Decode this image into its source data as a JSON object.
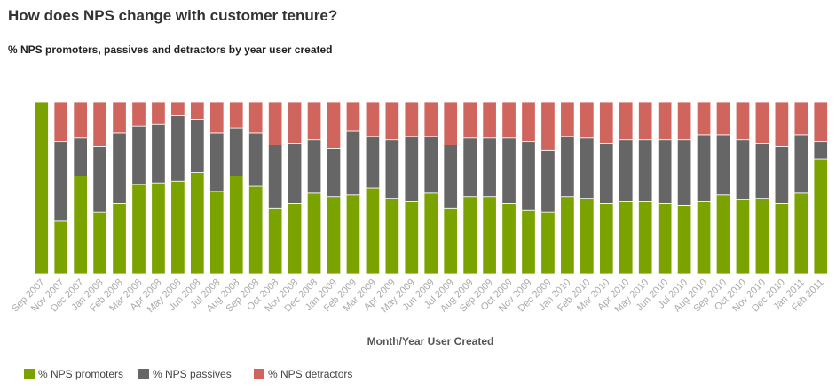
{
  "chart_data": {
    "type": "bar",
    "stacked": true,
    "title": "How does NPS change with customer tenure?",
    "subtitle": "% NPS promoters, passives and detractors by year user created",
    "xlabel": "Month/Year User Created",
    "ylabel": "",
    "ylim": [
      0,
      100
    ],
    "grid": false,
    "legend_position": "bottom-left",
    "categories": [
      "Sep 2007",
      "Nov 2007",
      "Dec 2007",
      "Jan 2008",
      "Feb 2008",
      "Mar 2008",
      "Apr 2008",
      "May 2008",
      "Jun 2008",
      "Jul 2008",
      "Aug 2008",
      "Sep 2008",
      "Oct 2008",
      "Nov 2008",
      "Dec 2008",
      "Jan 2009",
      "Feb 2009",
      "Mar 2009",
      "Apr 2009",
      "May 2009",
      "Jun 2009",
      "Jul 2009",
      "Aug 2009",
      "Sep 2009",
      "Oct 2009",
      "Nov 2009",
      "Dec 2009",
      "Jan 2010",
      "Feb 2010",
      "Mar 2010",
      "Apr 2010",
      "May 2010",
      "Jun 2010",
      "Jul 2010",
      "Aug 2010",
      "Sep 2010",
      "Oct 2010",
      "Nov 2010",
      "Dec 2010",
      "Jan 2011",
      "Feb 2011"
    ],
    "series": [
      {
        "name": "% NPS promoters",
        "color": "#7ba300",
        "values": [
          100,
          31,
          57,
          36,
          41,
          52,
          53,
          54,
          59,
          48,
          57,
          51,
          38,
          41,
          47,
          45,
          46,
          50,
          44,
          42,
          47,
          38,
          45,
          45,
          41,
          37,
          36,
          45,
          44,
          41,
          42,
          42,
          41,
          40,
          42,
          46,
          43,
          44,
          41,
          47,
          67
        ]
      },
      {
        "name": "% NPS passives",
        "color": "#666666",
        "values": [
          0,
          46,
          22,
          38,
          41,
          34,
          34,
          38,
          31,
          34,
          28,
          31,
          37,
          35,
          31,
          28,
          37,
          30,
          34,
          38,
          33,
          37,
          34,
          34,
          38,
          40,
          36,
          35,
          35,
          35,
          36,
          36,
          37,
          38,
          39,
          35,
          35,
          32,
          33,
          34,
          10
        ]
      },
      {
        "name": "% NPS detractors",
        "color": "#d0655d",
        "values": [
          0,
          23,
          21,
          26,
          18,
          14,
          13,
          8,
          10,
          18,
          15,
          18,
          25,
          24,
          22,
          27,
          17,
          20,
          22,
          20,
          20,
          25,
          21,
          21,
          21,
          23,
          28,
          20,
          21,
          24,
          22,
          22,
          22,
          22,
          19,
          19,
          22,
          24,
          26,
          19,
          23
        ]
      }
    ]
  }
}
